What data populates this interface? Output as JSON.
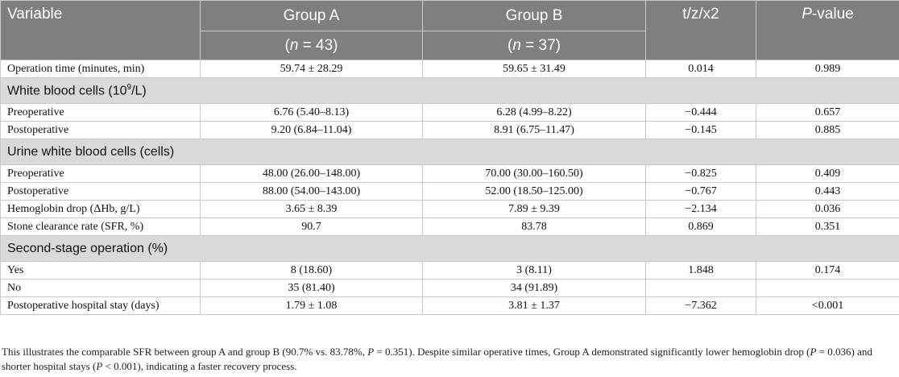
{
  "header": {
    "variable": "Variable",
    "group_a": "Group A",
    "group_b": "Group B",
    "stat": "t/z/x2",
    "p_italic": "P",
    "p_rest": "-value",
    "n_italic": "n",
    "n_a_rest": " = 43)",
    "n_b_rest": " = 37)",
    "paren_open": "("
  },
  "rows": {
    "op_time": {
      "label": "Operation time (minutes, min)",
      "a": "59.74 ± 28.29",
      "b": "59.65 ± 31.49",
      "stat": "0.014",
      "p": "0.989"
    },
    "wbc_section": {
      "label_main": "White blood cells (10",
      "label_sup": "9",
      "label_end": "/L)"
    },
    "wbc_pre": {
      "label": "Preoperative",
      "a": "6.76 (5.40–8.13)",
      "b": "6.28 (4.99–8.22)",
      "stat": "−0.444",
      "p": "0.657"
    },
    "wbc_post": {
      "label": "Postoperative",
      "a": "9.20 (6.84–11.04)",
      "b": "8.91 (6.75–11.47)",
      "stat": "−0.145",
      "p": "0.885"
    },
    "uwbc_section": {
      "label": "Urine white blood cells (cells)"
    },
    "uwbc_pre": {
      "label": "Preoperative",
      "a": "48.00 (26.00–148.00)",
      "b": "70.00 (30.00–160.50)",
      "stat": "−0.825",
      "p": "0.409"
    },
    "uwbc_post": {
      "label": "Postoperative",
      "a": "88.00 (54.00–143.00)",
      "b": "52.00 (18.50–125.00)",
      "stat": "−0.767",
      "p": "0.443"
    },
    "hb_drop": {
      "label": "Hemoglobin drop (ΔHb, g/L)",
      "a": "3.65 ± 8.39",
      "b": "7.89 ± 9.39",
      "stat": "−2.134",
      "p": "0.036"
    },
    "sfr": {
      "label": "Stone clearance rate (SFR, %)",
      "a": "90.7",
      "b": "83.78",
      "stat": "0.869",
      "p": "0.351"
    },
    "second_section": {
      "label": "Second-stage operation (%)"
    },
    "yes": {
      "label": "Yes",
      "a": "8 (18.60)",
      "b": "3 (8.11)",
      "stat": "1.848",
      "p": "0.174"
    },
    "no": {
      "label": "No",
      "a": "35 (81.40)",
      "b": "34 (91.89)",
      "stat": "",
      "p": ""
    },
    "stay": {
      "label": "Postoperative hospital stay (days)",
      "a": "1.79 ± 1.08",
      "b": "3.81 ± 1.37",
      "stat": "−7.362",
      "p": "<0.001"
    }
  },
  "footnote": {
    "s1": "This illustrates the comparable SFR between group A and group B (90.7% vs. 83.78%, ",
    "p1": "P",
    "s2": " = 0.351). Despite similar operative times, Group A demonstrated significantly lower hemoglobin drop (",
    "p2": "P",
    "s3": " = 0.036) and shorter hospital stays (",
    "p3": "P",
    "s4": " < 0.001), indicating a faster recovery process."
  }
}
